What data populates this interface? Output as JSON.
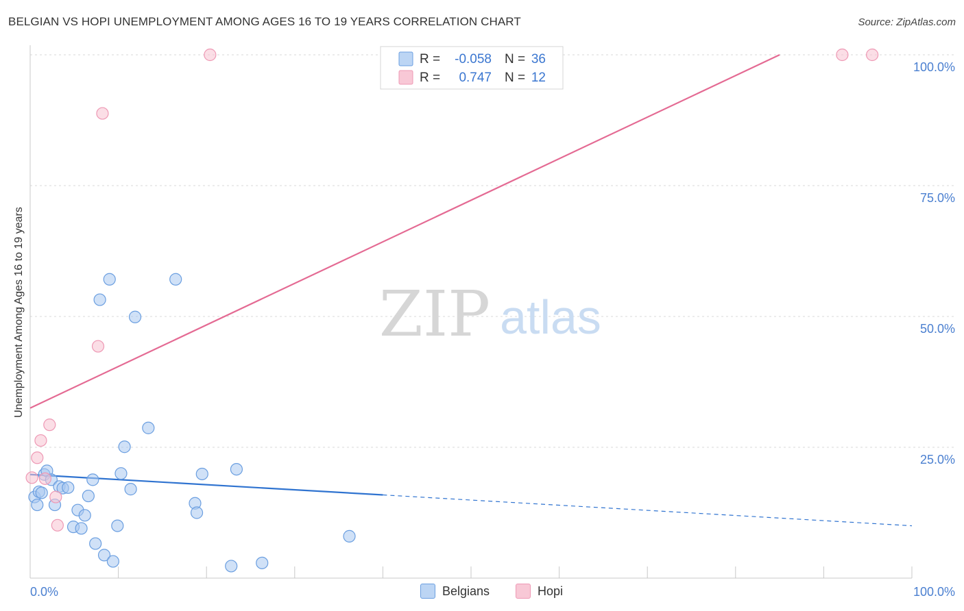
{
  "header": {
    "title": "BELGIAN VS HOPI UNEMPLOYMENT AMONG AGES 16 TO 19 YEARS CORRELATION CHART",
    "source": "Source: ZipAtlas.com"
  },
  "watermark": {
    "zip": "ZIP",
    "atlas": "atlas"
  },
  "colors": {
    "belgians_fill": "#a9c8f0",
    "belgians_stroke": "#6a9ee0",
    "belgians_line": "#2f73d0",
    "hopi_fill": "#f8c2d2",
    "hopi_stroke": "#ee98b4",
    "hopi_line": "#e46a93",
    "axis_text": "#4a7fd0",
    "grid": "#d8d8d8"
  },
  "legend": {
    "rows": [
      {
        "r_label": "R =",
        "r_value": "-0.058",
        "n_label": "N =",
        "n_value": "36",
        "series": "belgians"
      },
      {
        "r_label": "R =",
        "r_value": " 0.747",
        "n_label": "N =",
        "n_value": "12",
        "series": "hopi"
      }
    ]
  },
  "bottom_legend": {
    "belgians": "Belgians",
    "hopi": "Hopi"
  },
  "chart_data": {
    "type": "scatter",
    "title": "BELGIAN VS HOPI UNEMPLOYMENT AMONG AGES 16 TO 19 YEARS CORRELATION CHART",
    "xlabel": "",
    "ylabel": "Unemployment Among Ages 16 to 19 years",
    "xlim": [
      0,
      100
    ],
    "ylim": [
      0,
      100
    ],
    "x_tick_labels": [
      "0.0%",
      "100.0%"
    ],
    "y_ticks": [
      {
        "value": 25,
        "label": "25.0%"
      },
      {
        "value": 50,
        "label": "50.0%"
      },
      {
        "value": 75,
        "label": "75.0%"
      },
      {
        "value": 100,
        "label": "100.0%"
      }
    ],
    "grid": true,
    "series": [
      {
        "name": "Belgians",
        "r": -0.058,
        "n": 36,
        "points": [
          [
            0.5,
            15.5
          ],
          [
            0.8,
            14.0
          ],
          [
            1.0,
            16.5
          ],
          [
            1.3,
            16.3
          ],
          [
            1.6,
            19.8
          ],
          [
            1.9,
            20.5
          ],
          [
            2.4,
            18.8
          ],
          [
            2.8,
            14.0
          ],
          [
            3.3,
            17.5
          ],
          [
            3.7,
            17.2
          ],
          [
            4.3,
            17.3
          ],
          [
            4.9,
            9.8
          ],
          [
            5.4,
            13.0
          ],
          [
            5.8,
            9.5
          ],
          [
            6.2,
            12.0
          ],
          [
            6.6,
            15.7
          ],
          [
            7.1,
            18.8
          ],
          [
            7.4,
            6.6
          ],
          [
            7.9,
            53.2
          ],
          [
            8.4,
            4.4
          ],
          [
            9.0,
            57.1
          ],
          [
            9.4,
            3.2
          ],
          [
            9.9,
            10.0
          ],
          [
            10.3,
            20.0
          ],
          [
            10.7,
            25.1
          ],
          [
            11.4,
            17.0
          ],
          [
            11.9,
            49.9
          ],
          [
            13.4,
            28.7
          ],
          [
            16.5,
            57.1
          ],
          [
            18.7,
            14.3
          ],
          [
            18.9,
            12.5
          ],
          [
            19.5,
            19.9
          ],
          [
            22.8,
            2.3
          ],
          [
            23.4,
            20.8
          ],
          [
            26.3,
            2.9
          ],
          [
            36.2,
            8.0
          ]
        ]
      },
      {
        "name": "Hopi",
        "r": 0.747,
        "n": 12,
        "points": [
          [
            0.2,
            19.2
          ],
          [
            0.8,
            23.0
          ],
          [
            1.2,
            26.3
          ],
          [
            1.7,
            19.0
          ],
          [
            2.2,
            29.3
          ],
          [
            2.9,
            15.5
          ],
          [
            3.1,
            10.1
          ],
          [
            7.7,
            44.3
          ],
          [
            8.2,
            88.8
          ],
          [
            20.4,
            100.0
          ],
          [
            92.1,
            100.0
          ],
          [
            95.5,
            100.0
          ]
        ]
      }
    ],
    "trend_lines": [
      {
        "series": "Belgians",
        "solid": [
          [
            0,
            19.8
          ],
          [
            40,
            15.9
          ]
        ],
        "dashed": [
          [
            40,
            15.9
          ],
          [
            100,
            10.0
          ]
        ]
      },
      {
        "series": "Hopi",
        "solid": [
          [
            0,
            32.5
          ],
          [
            85,
            100.0
          ]
        ]
      }
    ]
  }
}
